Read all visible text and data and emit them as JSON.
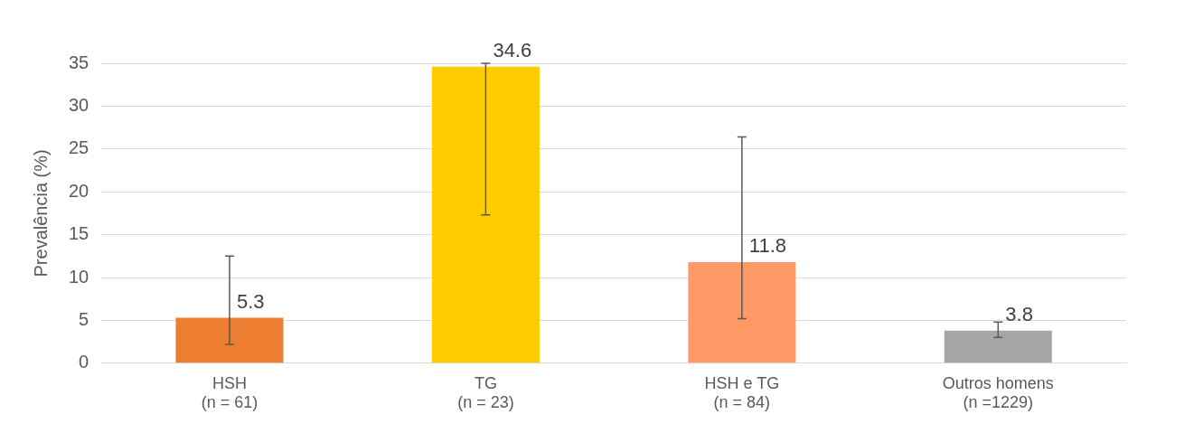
{
  "chart_data": {
    "type": "bar",
    "ylabel": "Prevalência (%)",
    "categories": [
      "HSH\n(n = 61)",
      "TG\n(n = 23)",
      "HSH e TG\n(n = 84)",
      "Outros homens\n(n =1229)"
    ],
    "values": [
      5.3,
      34.6,
      11.8,
      3.8
    ],
    "colors": [
      "#ed7d31",
      "#ffcc00",
      "#ff9966",
      "#a5a5a5"
    ],
    "errors": [
      [
        2.2,
        12.5
      ],
      [
        17.3,
        35
      ],
      [
        5.2,
        26.4
      ],
      [
        3.0,
        4.8
      ]
    ],
    "data_labels": true,
    "ylim": [
      0,
      35
    ],
    "yticks": [
      0,
      5,
      10,
      15,
      20,
      25,
      30,
      35
    ],
    "grid": "y",
    "legend": false
  }
}
